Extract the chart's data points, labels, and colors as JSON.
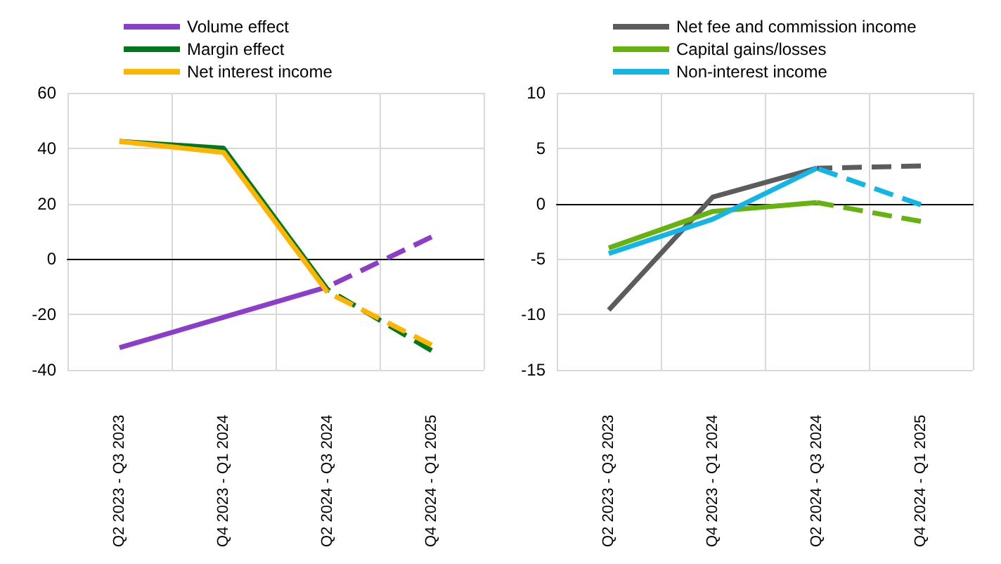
{
  "chart_data": [
    {
      "type": "line",
      "categories": [
        "Q2 2023 - Q3 2023",
        "Q4 2023 - Q1 2024",
        "Q2 2024 - Q3 2024",
        "Q4 2024 - Q1 2025"
      ],
      "series": [
        {
          "name": "Volume effect",
          "color": "#8b3fc8",
          "values": [
            -32,
            -21,
            -10,
            null
          ]
        },
        {
          "color": "#8b3fc8",
          "values": [
            null,
            null,
            -10,
            8
          ],
          "line_style": "dashed"
        },
        {
          "name": "Margin effect",
          "color": "#00781e",
          "values": [
            42.5,
            40,
            -11,
            null
          ]
        },
        {
          "color": "#00781e",
          "values": [
            null,
            null,
            -11,
            -33
          ],
          "line_style": "dashed"
        },
        {
          "name": "Net interest income",
          "color": "#ffb400",
          "values": [
            42.5,
            38.5,
            -12,
            null
          ]
        },
        {
          "color": "#ffb400",
          "values": [
            null,
            null,
            -12,
            -31
          ],
          "line_style": "dashed"
        }
      ],
      "ylim": [
        -40,
        60
      ],
      "yticks": [
        -40,
        -20,
        0,
        20,
        40,
        60
      ],
      "grid": true,
      "legend": "top left",
      "marker": "none",
      "line_style": "solid"
    },
    {
      "type": "line",
      "categories": [
        "Q2 2023 - Q3 2023",
        "Q4 2023 - Q1 2024",
        "Q2 2024 - Q3 2024",
        "Q4 2024 - Q1 2025"
      ],
      "series": [
        {
          "name": "Net fee and commission income",
          "color": "#5c5c5c",
          "values": [
            -9.6,
            0.6,
            3.2,
            null
          ]
        },
        {
          "color": "#5c5c5c",
          "values": [
            null,
            null,
            3.2,
            3.4
          ],
          "line_style": "dashed"
        },
        {
          "name": "Capital gains/losses",
          "color": "#66b30f",
          "values": [
            -4,
            -0.7,
            0.1,
            null
          ]
        },
        {
          "color": "#66b30f",
          "values": [
            null,
            null,
            0.1,
            -1.6
          ],
          "line_style": "dashed"
        },
        {
          "name": "Non-interest income",
          "color": "#14b4e6",
          "values": [
            -4.5,
            -1.4,
            3.2,
            null
          ]
        },
        {
          "color": "#14b4e6",
          "values": [
            null,
            null,
            3.2,
            -0.1
          ],
          "line_style": "dashed"
        }
      ],
      "ylim": [
        -15,
        10
      ],
      "yticks": [
        -15,
        -10,
        -5,
        0,
        5,
        10
      ],
      "grid": true,
      "legend": "top left",
      "marker": "none",
      "line_style": "solid"
    }
  ]
}
